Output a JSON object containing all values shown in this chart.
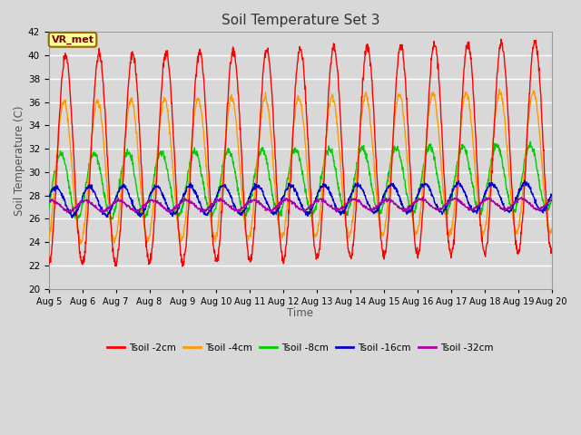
{
  "title": "Soil Temperature Set 3",
  "xlabel": "Time",
  "ylabel": "Soil Temperature (C)",
  "ylim": [
    20,
    42
  ],
  "xlim": [
    0,
    15
  ],
  "fig_bg_color": "#d8d8d8",
  "plot_bg_color": "#d8d8d8",
  "grid_color": "#ffffff",
  "annotation_text": "VR_met",
  "annotation_bg": "#ffff99",
  "annotation_border": "#996600",
  "series": [
    {
      "label": "Tsoil -2cm",
      "color": "#ff0000"
    },
    {
      "label": "Tsoil -4cm",
      "color": "#ff9900"
    },
    {
      "label": "Tsoil -8cm",
      "color": "#00cc00"
    },
    {
      "label": "Tsoil -16cm",
      "color": "#0000cc"
    },
    {
      "label": "Tsoil -32cm",
      "color": "#aa00aa"
    }
  ],
  "tick_labels": [
    "Aug 5",
    "Aug 6",
    "Aug 7",
    "Aug 8",
    "Aug 9",
    "Aug 10",
    "Aug 11",
    "Aug 12",
    "Aug 13",
    "Aug 14",
    "Aug 15",
    "Aug 16",
    "Aug 17",
    "Aug 18",
    "Aug 19",
    "Aug 20"
  ],
  "tick_positions": [
    0,
    1,
    2,
    3,
    4,
    5,
    6,
    7,
    8,
    9,
    10,
    11,
    12,
    13,
    14,
    15
  ],
  "yticks": [
    20,
    22,
    24,
    26,
    28,
    30,
    32,
    34,
    36,
    38,
    40,
    42
  ]
}
